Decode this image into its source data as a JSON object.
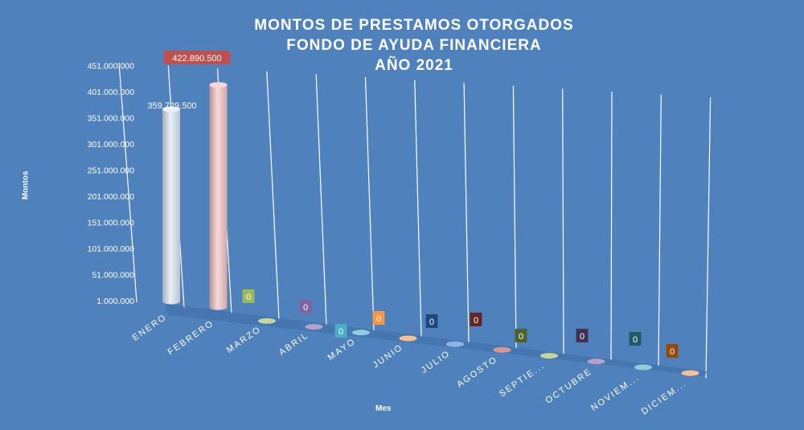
{
  "chart_data": {
    "type": "bar",
    "title_lines": [
      "MONTOS  DE  PRESTAMOS  OTORGADOS",
      "FONDO DE AYUDA  FINANCIERA",
      "AÑO 2021"
    ],
    "xlabel": "Mes",
    "ylabel": "Montos",
    "categories": [
      "ENERO",
      "FEBRERO",
      "MARZO",
      "ABRIL",
      "MAYO",
      "JUNIO",
      "JULIO",
      "AGOSTO",
      "SEPTIE...",
      "OCTUBRE",
      "NOVIEM...",
      "DICIEM..."
    ],
    "values": [
      359729500,
      422890500,
      0,
      0,
      0,
      0,
      0,
      0,
      0,
      0,
      0,
      0
    ],
    "data_labels": [
      "359.729.500",
      "422.890.500",
      "0",
      "0",
      "0",
      "0",
      "0",
      "0",
      "0",
      "0",
      "0",
      "0"
    ],
    "y_ticks": [
      "1.000.000",
      "51.000.000",
      "101.000.000",
      "151.000.000",
      "201.000.000",
      "251.000.000",
      "301.000.000",
      "351.000.000",
      "401.000.000",
      "451.000.000"
    ],
    "ylim": [
      1000000,
      451000000
    ],
    "grid": true,
    "legend": "none",
    "colors": [
      "#dce6f2",
      "#f2c4c4",
      "#c3d69b",
      "#b3a2c7",
      "#93cddd",
      "#fac090",
      "#8eb4e3",
      "#d99694",
      "#c3d69b",
      "#b3a2c7",
      "#93cddd",
      "#fac090"
    ],
    "label_colors": [
      "#4f81bd",
      "#c0504d",
      "#9bbb59",
      "#8064a2",
      "#4bacc6",
      "#f79646",
      "#1f497d",
      "#632523",
      "#4f6228",
      "#403152",
      "#215968",
      "#984807"
    ]
  }
}
